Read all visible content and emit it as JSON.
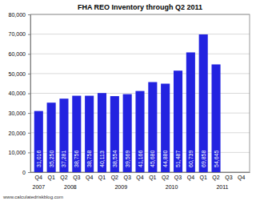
{
  "chart_data": {
    "type": "bar",
    "title": "FHA REO Inventory through Q2 2011",
    "categories": [
      "Q4",
      "Q1",
      "Q2",
      "Q3",
      "Q4",
      "Q1",
      "Q2",
      "Q3",
      "Q4",
      "Q1",
      "Q2",
      "Q3",
      "Q4",
      "Q1",
      "Q2",
      "Q3",
      "Q4"
    ],
    "year_groups": [
      {
        "label": "2007",
        "span": [
          0,
          0
        ]
      },
      {
        "label": "2008",
        "span": [
          1,
          4
        ]
      },
      {
        "label": "2009",
        "span": [
          5,
          8
        ]
      },
      {
        "label": "2010",
        "span": [
          9,
          12
        ]
      },
      {
        "label": "2011",
        "span": [
          13,
          16
        ]
      }
    ],
    "values": [
      31016,
      35250,
      37281,
      38756,
      38758,
      40113,
      38554,
      39569,
      41166,
      45680,
      44880,
      51487,
      60739,
      69858,
      54645,
      null,
      null
    ],
    "value_labels": [
      "31,016",
      "35,250",
      "37,281",
      "38,756",
      "38,758",
      "40,113",
      "38,554",
      "39,569",
      "41,166",
      "45,680",
      "44,880",
      "51,487",
      "60,739",
      "69,858",
      "54,645",
      null,
      null
    ],
    "data_labels": true,
    "color": "#2323e0",
    "ylim": [
      0,
      80000
    ],
    "yticks": [
      0,
      {
        "value": 10000,
        "label": "10,000"
      },
      {
        "value": 20000,
        "label": "20,000"
      },
      {
        "value": 30000,
        "label": "30,000"
      },
      {
        "value": 40000,
        "label": "40,000"
      },
      {
        "value": 50000,
        "label": "50,000"
      },
      {
        "value": 60000,
        "label": "60,000"
      },
      {
        "value": 70000,
        "label": "70,000"
      },
      {
        "value": 80000,
        "label": "80,000"
      }
    ],
    "grid": true,
    "source": "www.calculatedriskblog.com"
  }
}
